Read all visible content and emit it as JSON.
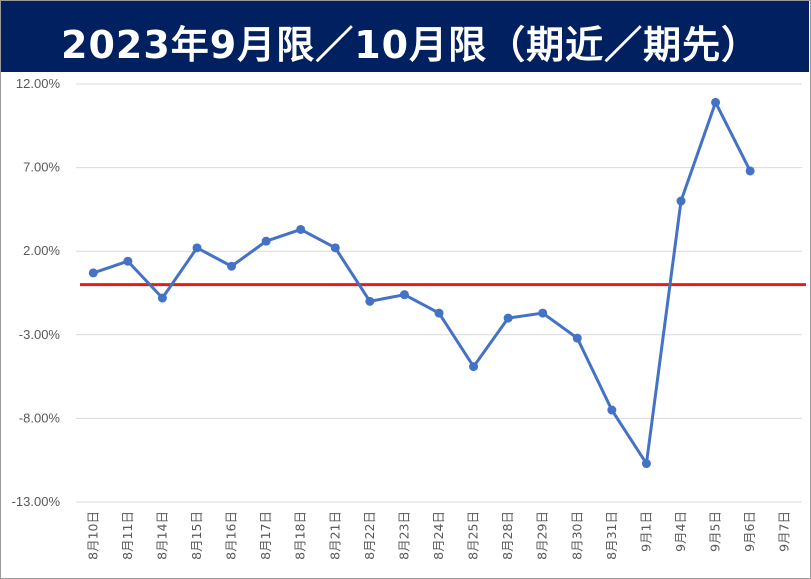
{
  "header": {
    "title": "2023年9月限／10月限（期近／期先）"
  },
  "colors": {
    "header_bg": "#002060",
    "series": "#4472c4",
    "zero_line": "#e81b1b",
    "grid": "#d9d9d9"
  },
  "chart_data": {
    "type": "line",
    "title": "2023年9月限／10月限（期近／期先）",
    "xlabel": "",
    "ylabel": "",
    "ylim": [
      -13,
      12
    ],
    "y_ticks": [
      12,
      7,
      2,
      -3,
      -8,
      -13
    ],
    "y_tick_labels": [
      "12.00%",
      "7.00%",
      "2.00%",
      "-3.00%",
      "-8.00%",
      "-13.00%"
    ],
    "grid": true,
    "reference_line": 0,
    "categories": [
      "8月10日",
      "8月11日",
      "8月14日",
      "8月15日",
      "8月16日",
      "8月17日",
      "8月18日",
      "8月21日",
      "8月22日",
      "8月23日",
      "8月24日",
      "8月25日",
      "8月28日",
      "8月29日",
      "8月30日",
      "8月31日",
      "9月1日",
      "9月4日",
      "9月5日",
      "9月6日",
      "9月7日"
    ],
    "series": [
      {
        "values": [
          0.7,
          1.4,
          -0.8,
          2.2,
          1.1,
          2.6,
          3.3,
          2.2,
          -1.0,
          -0.6,
          -1.7,
          -4.9,
          -2.0,
          -1.7,
          -3.2,
          -7.5,
          -10.7,
          5.0,
          10.9,
          6.8,
          null
        ]
      }
    ]
  }
}
